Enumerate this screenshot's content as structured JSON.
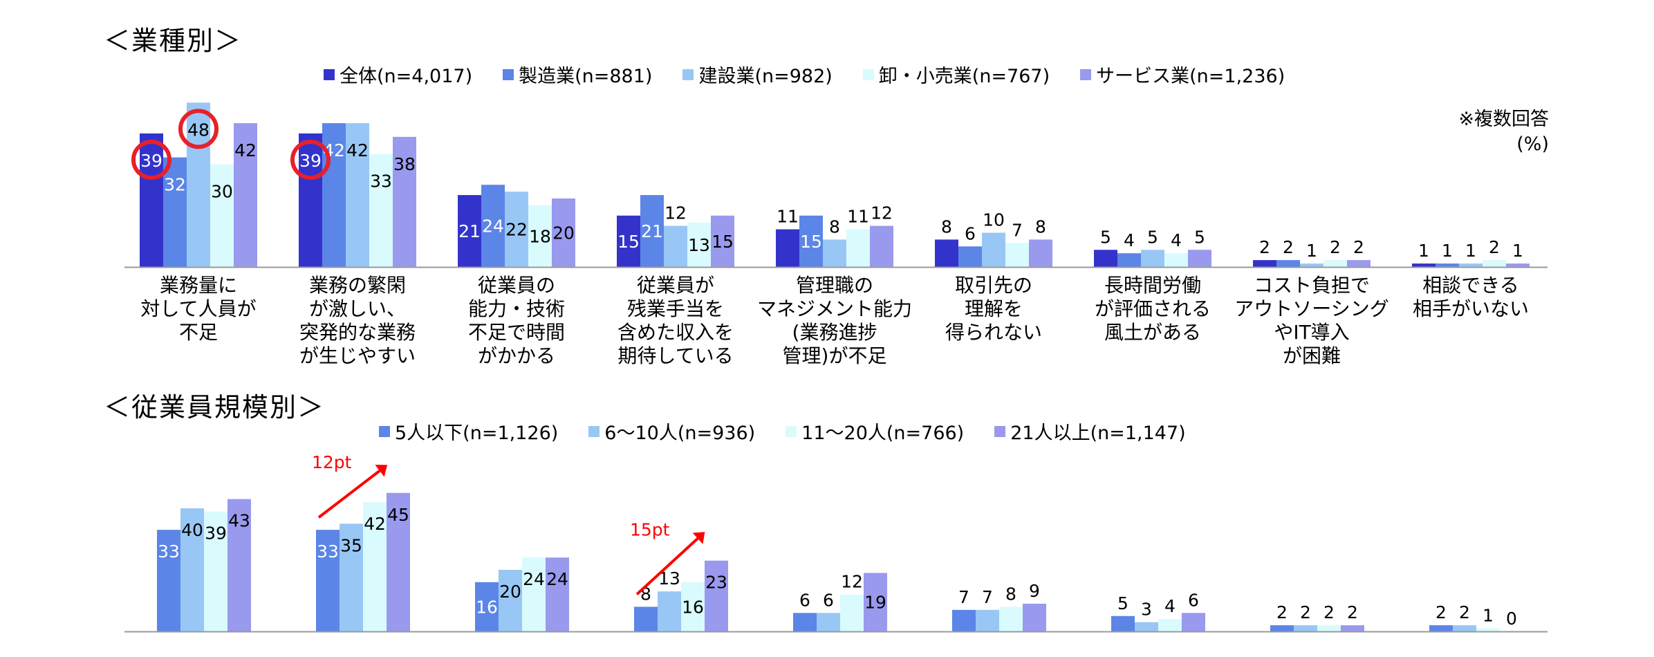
{
  "chart_data": [
    {
      "type": "bar",
      "title": "＜業種別＞",
      "note": "※複数回答",
      "unit": "(%)",
      "categories": [
        [
          "業務量に",
          "対して人員が",
          "不足"
        ],
        [
          "業務の繁閑",
          "が激しい、",
          "突発的な業務",
          "が生じやすい"
        ],
        [
          "従業員の",
          "能力・技術",
          "不足で時間",
          "がかかる"
        ],
        [
          "従業員が",
          "残業手当を",
          "含めた収入を",
          "期待している"
        ],
        [
          "管理職の",
          "マネジメント能力",
          "(業務進捗",
          "管理)が不足"
        ],
        [
          "取引先の",
          "理解を",
          "得られない"
        ],
        [
          "長時間労働",
          "が評価される",
          "風土がある"
        ],
        [
          "コスト負担で",
          "アウトソーシング",
          "やIT導入",
          "が困難"
        ],
        [
          "相談できる",
          "相手がいない"
        ]
      ],
      "series": [
        {
          "name": "全体(n=4,017)",
          "color": "#3333cc",
          "values": [
            39,
            39,
            21,
            15,
            11,
            8,
            5,
            2,
            1
          ]
        },
        {
          "name": "製造業(n=881)",
          "color": "#5b85e6",
          "values": [
            32,
            42,
            24,
            21,
            15,
            6,
            4,
            2,
            1
          ]
        },
        {
          "name": "建設業(n=982)",
          "color": "#99c7f5",
          "values": [
            48,
            42,
            22,
            12,
            8,
            10,
            5,
            1,
            1
          ]
        },
        {
          "name": "卸・小売業(n=767)",
          "color": "#d9fbfd",
          "values": [
            30,
            33,
            18,
            13,
            11,
            7,
            4,
            2,
            2
          ]
        },
        {
          "name": "サービス業(n=1,236)",
          "color": "#9999ee",
          "values": [
            42,
            38,
            20,
            15,
            12,
            8,
            5,
            2,
            1
          ]
        }
      ],
      "highlighted": [
        {
          "category_index": 0,
          "series_index": 0
        },
        {
          "category_index": 0,
          "series_index": 2
        },
        {
          "category_index": 1,
          "series_index": 0
        }
      ]
    },
    {
      "type": "bar",
      "title": "＜従業員規模別＞",
      "series": [
        {
          "name": "5人以下(n=1,126)",
          "color": "#5b85e6",
          "values": [
            33,
            33,
            16,
            8,
            6,
            7,
            5,
            2,
            2
          ]
        },
        {
          "name": "6〜10人(n=936)",
          "color": "#99c7f5",
          "values": [
            40,
            35,
            20,
            13,
            6,
            7,
            3,
            2,
            2
          ]
        },
        {
          "name": "11〜20人(n=766)",
          "color": "#d9fbfd",
          "values": [
            39,
            42,
            24,
            16,
            12,
            8,
            4,
            2,
            1
          ]
        },
        {
          "name": "21人以上(n=1,147)",
          "color": "#9999ee",
          "values": [
            43,
            45,
            24,
            23,
            19,
            9,
            6,
            2,
            0
          ]
        }
      ],
      "annotations": [
        {
          "text": "12pt",
          "category_index": 1,
          "color": "#ff0000"
        },
        {
          "text": "15pt",
          "category_index": 3,
          "color": "#ff0000"
        }
      ]
    }
  ]
}
